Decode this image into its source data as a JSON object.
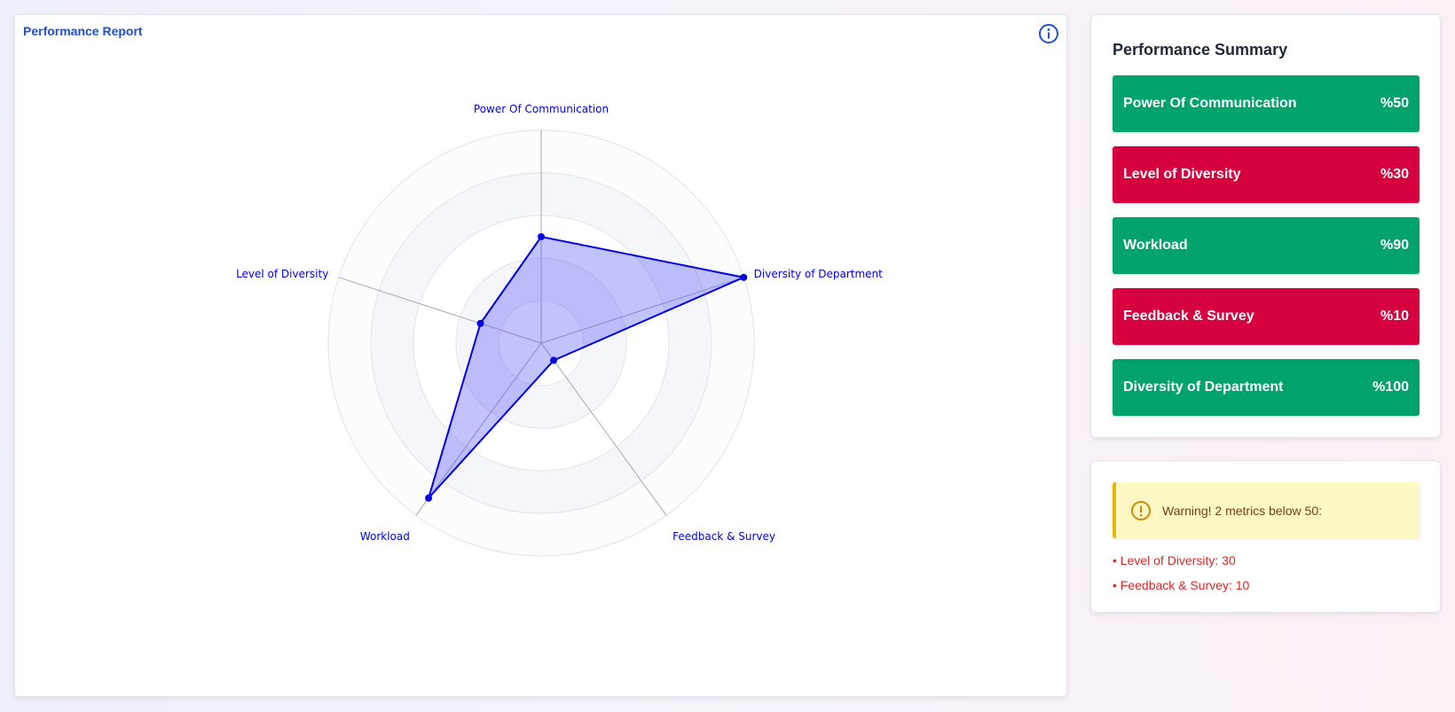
{
  "report": {
    "title": "Performance Report",
    "info_icon": "info-icon"
  },
  "chart_data": {
    "type": "radar",
    "axes": [
      "Power Of Communication",
      "Diversity of Department",
      "Feedback & Survey",
      "Workload",
      "Level of Diversity"
    ],
    "values": [
      50,
      100,
      10,
      90,
      30
    ],
    "range": [
      0,
      100
    ],
    "rings": 5,
    "colors": {
      "line": "#0000e6",
      "fill": "rgba(80,80,245,0.35)"
    }
  },
  "summary": {
    "title": "Performance Summary",
    "metrics": [
      {
        "label": "Power Of Communication",
        "value": "%50",
        "color": "#00a36b"
      },
      {
        "label": "Level of Diversity",
        "value": "%30",
        "color": "#d6003f"
      },
      {
        "label": "Workload",
        "value": "%90",
        "color": "#00a36b"
      },
      {
        "label": "Feedback & Survey",
        "value": "%10",
        "color": "#d6003f"
      },
      {
        "label": "Diversity of Department",
        "value": "%100",
        "color": "#00a36b"
      }
    ]
  },
  "warning": {
    "icon": "alert-circle-icon",
    "text": "Warning! 2 metrics below 50:",
    "items": [
      "• Level of Diversity: 30",
      "• Feedback & Survey: 10"
    ]
  }
}
